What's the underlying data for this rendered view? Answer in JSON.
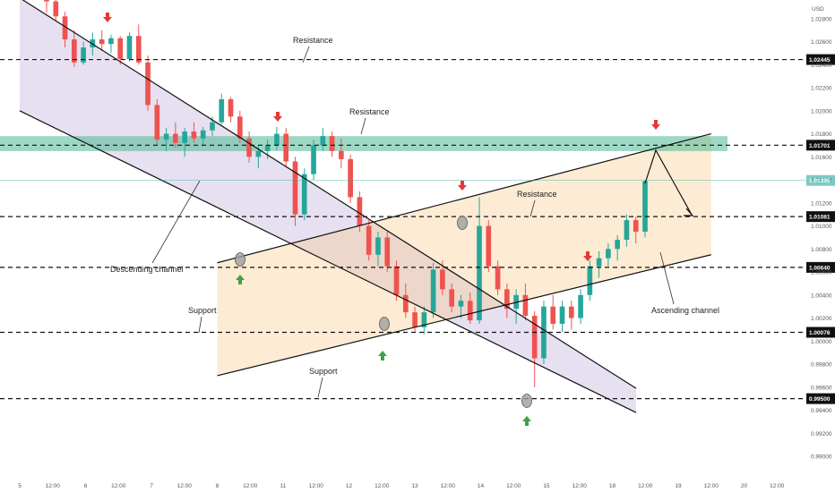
{
  "colors": {
    "up": "#26a69a",
    "down": "#ef5350",
    "resistance_zone": "#4db894",
    "descending_fill": "#a491c9",
    "ascending_fill": "#f9c784",
    "arrow_down": "#e53935",
    "arrow_up": "#43a047",
    "level_line": "#111111",
    "channel_line": "#111111",
    "price_box": "#111111"
  },
  "icons": {
    "down_arrow": "down-arrow-icon",
    "up_arrow": "up-arrow-icon",
    "touch_marker": "touch-circle-icon"
  },
  "chart_data": {
    "type": "candlestick",
    "unit_label": "USD",
    "grid": false,
    "y_ticks": [
      "1.02800",
      "1.02600",
      "1.02400",
      "1.02200",
      "1.02000",
      "1.01800",
      "1.01600",
      "1.01400",
      "1.01200",
      "1.01000",
      "1.00800",
      "1.00600",
      "1.00400",
      "1.00200",
      "1.00000",
      "0.99800",
      "0.99600",
      "0.99400",
      "0.99200",
      "0.99000"
    ],
    "x_ticks": [
      "5",
      "12:00",
      "6",
      "12:00",
      "7",
      "12:00",
      "8",
      "12:00",
      "11",
      "12:00",
      "12",
      "12:00",
      "13",
      "12:00",
      "14",
      "12:00",
      "15",
      "12:00",
      "18",
      "12:00",
      "19",
      "12:00",
      "20",
      "12:00"
    ],
    "horizontal_levels": [
      {
        "price": 1.02445,
        "label": "1.02445"
      },
      {
        "price": 1.01701,
        "label": "1.01701"
      },
      {
        "price": 1.01081,
        "label": "1.01081"
      },
      {
        "price": 1.0064,
        "label": "1.00640"
      },
      {
        "price": 1.00076,
        "label": "1.00076"
      },
      {
        "price": 0.995,
        "label": "0.99500"
      }
    ],
    "current_price_label": "1.01395",
    "resistance_zone": {
      "from": 1.0165,
      "to": 1.0178
    },
    "annotations": [
      "Resistance",
      "Resistance",
      "Resistance",
      "Descending channel",
      "Ascending channel",
      "Support",
      "Support"
    ],
    "descending_channel": {
      "upper": [
        [
          "5 00:00",
          1.0298
        ],
        [
          "11 12:00",
          1.0135
        ]
      ],
      "lower": [
        [
          "5 00:00",
          1.02
        ],
        [
          "19 00:00",
          0.992
        ]
      ]
    },
    "ascending_channel": {
      "lower": [
        [
          "8 00:00",
          0.997
        ],
        [
          "19 12:00",
          1.0075
        ]
      ],
      "upper": [
        [
          "8 00:00",
          1.0068
        ],
        [
          "19 12:00",
          1.018
        ]
      ]
    },
    "series": [
      {
        "type": "candlestick",
        "points": [
          [
            1.0298,
            1.03,
            1.0285,
            1.0295
          ],
          [
            1.0295,
            1.0299,
            1.0278,
            1.0282
          ],
          [
            1.0282,
            1.0286,
            1.0255,
            1.0262
          ],
          [
            1.0262,
            1.027,
            1.0238,
            1.0242
          ],
          [
            1.0242,
            1.026,
            1.024,
            1.0255
          ],
          [
            1.0255,
            1.0268,
            1.0248,
            1.0262
          ],
          [
            1.0262,
            1.027,
            1.0252,
            1.0258
          ],
          [
            1.0258,
            1.0266,
            1.025,
            1.0263
          ],
          [
            1.0263,
            1.0265,
            1.024,
            1.0245
          ],
          [
            1.0245,
            1.0268,
            1.0243,
            1.0265
          ],
          [
            1.0265,
            1.0275,
            1.024,
            1.0242
          ],
          [
            1.0242,
            1.0248,
            1.02,
            1.0205
          ],
          [
            1.0205,
            1.021,
            1.017,
            1.0175
          ],
          [
            1.0175,
            1.0185,
            1.0165,
            1.018
          ],
          [
            1.018,
            1.019,
            1.0168,
            1.0172
          ],
          [
            1.0172,
            1.0185,
            1.016,
            1.0182
          ],
          [
            1.0182,
            1.019,
            1.0172,
            1.0176
          ],
          [
            1.0176,
            1.0186,
            1.017,
            1.0183
          ],
          [
            1.0183,
            1.0195,
            1.0178,
            1.019
          ],
          [
            1.019,
            1.0215,
            1.0188,
            1.021
          ],
          [
            1.021,
            1.0212,
            1.019,
            1.0195
          ],
          [
            1.0195,
            1.02,
            1.0172,
            1.0176
          ],
          [
            1.0176,
            1.0182,
            1.0155,
            1.016
          ],
          [
            1.016,
            1.017,
            1.015,
            1.0165
          ],
          [
            1.0165,
            1.0175,
            1.0158,
            1.017
          ],
          [
            1.017,
            1.0186,
            1.0166,
            1.018
          ],
          [
            1.018,
            1.0185,
            1.0152,
            1.0156
          ],
          [
            1.0156,
            1.016,
            1.01,
            1.011
          ],
          [
            1.011,
            1.015,
            1.0105,
            1.0145
          ],
          [
            1.0145,
            1.0175,
            1.014,
            1.017
          ],
          [
            1.017,
            1.0185,
            1.0165,
            1.0178
          ],
          [
            1.0178,
            1.0182,
            1.016,
            1.0165
          ],
          [
            1.0165,
            1.0176,
            1.015,
            1.0158
          ],
          [
            1.0158,
            1.0162,
            1.012,
            1.0125
          ],
          [
            1.0125,
            1.013,
            1.0095,
            1.01
          ],
          [
            1.01,
            1.0105,
            1.007,
            1.0075
          ],
          [
            1.0075,
            1.0095,
            1.0065,
            1.009
          ],
          [
            1.009,
            1.0095,
            1.006,
            1.0065
          ],
          [
            1.0065,
            1.007,
            1.0035,
            1.004
          ],
          [
            1.004,
            1.005,
            1.002,
            1.0025
          ],
          [
            1.0025,
            1.003,
            1.0008,
            1.0012
          ],
          [
            1.0012,
            1.003,
            1.0006,
            1.0025
          ],
          [
            1.0025,
            1.0068,
            1.002,
            1.0062
          ],
          [
            1.0062,
            1.007,
            1.004,
            1.0045
          ],
          [
            1.0045,
            1.005,
            1.0025,
            1.003
          ],
          [
            1.003,
            1.004,
            1.002,
            1.0035
          ],
          [
            1.0035,
            1.0042,
            1.0015,
            1.0018
          ],
          [
            1.0018,
            1.0125,
            1.0015,
            1.01
          ],
          [
            1.01,
            1.0105,
            1.006,
            1.0065
          ],
          [
            1.0065,
            1.007,
            1.004,
            1.0045
          ],
          [
            1.0045,
            1.005,
            1.002,
            1.0028
          ],
          [
            1.0028,
            1.0045,
            1.0015,
            1.004
          ],
          [
            1.004,
            1.005,
            1.0018,
            1.0022
          ],
          [
            1.0022,
            1.0026,
            0.996,
            0.9985
          ],
          [
            0.9985,
            1.0035,
            0.998,
            1.003
          ],
          [
            1.003,
            1.004,
            1.001,
            1.0015
          ],
          [
            1.0015,
            1.0035,
            1.0008,
            1.003
          ],
          [
            1.003,
            1.0035,
            1.001,
            1.002
          ],
          [
            1.002,
            1.0045,
            1.0015,
            1.004
          ],
          [
            1.004,
            1.007,
            1.0035,
            1.0065
          ],
          [
            1.0065,
            1.0078,
            1.0055,
            1.0072
          ],
          [
            1.0072,
            1.0085,
            1.0065,
            1.008
          ],
          [
            1.008,
            1.0092,
            1.007,
            1.0088
          ],
          [
            1.0088,
            1.011,
            1.0082,
            1.0105
          ],
          [
            1.0105,
            1.0108,
            1.0085,
            1.0095
          ],
          [
            1.0095,
            1.014,
            1.009,
            1.0139
          ]
        ]
      }
    ]
  }
}
